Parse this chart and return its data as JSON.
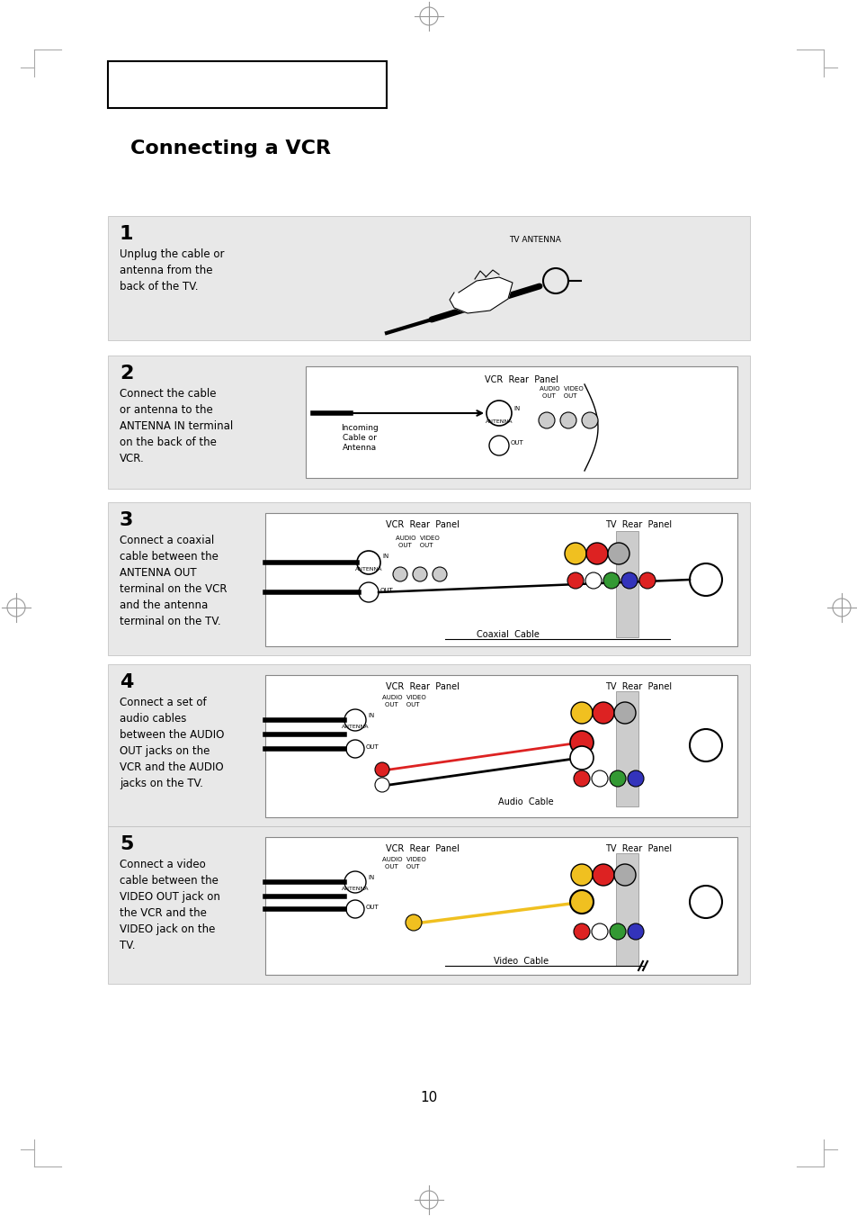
{
  "page_bg": "#ffffff",
  "title": "Connecting a VCR",
  "page_number": "10",
  "step1_num": "1",
  "step1_text": "Unplug the cable or\nantenna from the\nback of the TV.",
  "step2_num": "2",
  "step2_text": "Connect the cable\nor antenna to the\nANTENNA IN terminal\non the back of the\nVCR.",
  "step3_num": "3",
  "step3_text": "Connect a coaxial\ncable between the\nANTENNA OUT\nterminal on the VCR\nand the antenna\nterminal on the TV.",
  "step4_num": "4",
  "step4_text": "Connect a set of\naudio cables\nbetween the AUDIO\nOUT jacks on the\nVCR and the AUDIO\njacks on the TV.",
  "step5_num": "5",
  "step5_text": "Connect a video\ncable between the\nVIDEO OUT jack on\nthe VCR and the\nVIDEO jack on the\nTV.",
  "gray": "#e8e8e8",
  "white": "#ffffff",
  "black": "#000000",
  "red": "#dd2222",
  "yellow": "#f0c020",
  "green": "#339933",
  "blue": "#3333bb",
  "gray_conn": "#aaaaaa"
}
